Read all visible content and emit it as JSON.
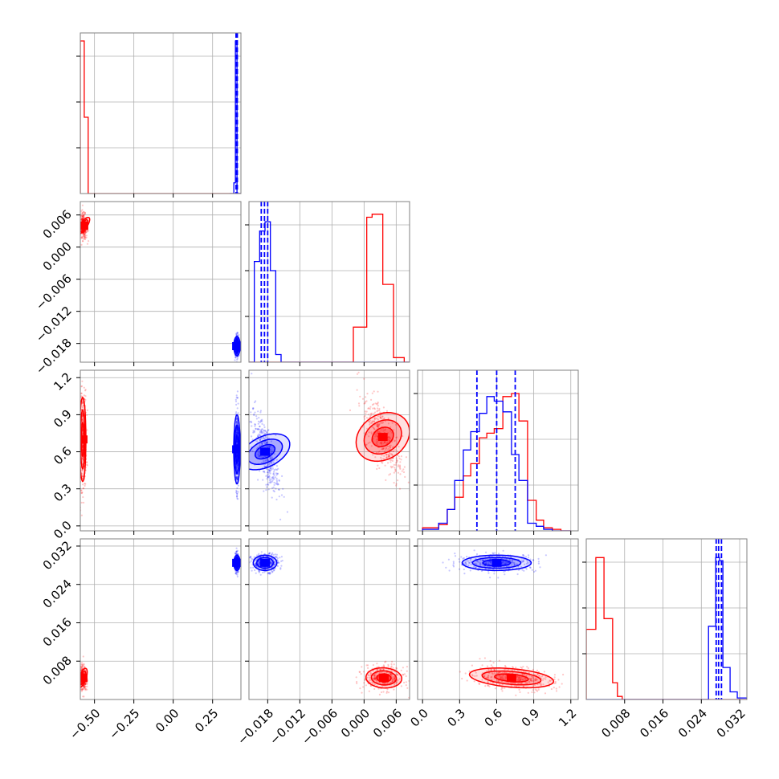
{
  "chart_data": {
    "type": "corner",
    "series": [
      {
        "name": "",
        "color": "#ff0000"
      },
      {
        "name": "",
        "color": "#0000ff"
      }
    ],
    "params": [
      {
        "range": [
          -0.59,
          0.43
        ],
        "ticks": [
          -0.5,
          -0.25,
          0.0,
          0.25
        ],
        "tick_labels": [
          "−0.50",
          "−0.25",
          "0.00",
          "0.25"
        ]
      },
      {
        "range": [
          -0.0215,
          0.0085
        ],
        "ticks": [
          -0.018,
          -0.012,
          -0.006,
          0.0,
          0.006
        ],
        "tick_labels": [
          "−0.018",
          "−0.012",
          "−0.006",
          "0.000",
          "0.006"
        ]
      },
      {
        "range": [
          -0.04,
          1.26
        ],
        "ticks": [
          0.0,
          0.3,
          0.6,
          0.9,
          1.2
        ],
        "tick_labels": [
          "0.0",
          "0.3",
          "0.6",
          "0.9",
          "1.2"
        ]
      },
      {
        "range": [
          0.0,
          0.0335
        ],
        "ticks": [
          0.008,
          0.016,
          0.024,
          0.032
        ],
        "tick_labels": [
          "0.008",
          "0.016",
          "0.024",
          "0.032"
        ]
      }
    ],
    "histograms": [
      {
        "red": {
          "edges": [
            -0.59,
            -0.565,
            -0.54,
            -0.515,
            0.43
          ],
          "counts": [
            1.0,
            0.5,
            0.0,
            0.0
          ]
        },
        "blue": {
          "edges": [
            0.36,
            0.385,
            0.395,
            0.405,
            0.43
          ],
          "counts": [
            0.0,
            0.07,
            1.0,
            0.0
          ]
        },
        "quantiles": [
          0.399,
          0.403,
          0.407
        ]
      },
      {
        "red": {
          "edges": [
            -0.0215,
            -0.002,
            0.0005,
            0.0015,
            0.0035,
            0.0055,
            0.0075,
            0.0085
          ],
          "counts": [
            0.0,
            0.23,
            0.95,
            0.97,
            0.51,
            0.03,
            0.0
          ]
        },
        "blue": {
          "edges": [
            -0.0215,
            -0.0205,
            -0.0195,
            -0.0185,
            -0.0175,
            -0.0165,
            -0.0155,
            0.0085
          ],
          "counts": [
            0.0,
            0.66,
            0.86,
            0.92,
            0.6,
            0.05,
            0.0
          ]
        },
        "quantiles": [
          -0.0192,
          -0.0186,
          -0.018
        ]
      },
      {
        "red": {
          "edges": [
            0.0,
            0.13,
            0.2,
            0.26,
            0.33,
            0.39,
            0.46,
            0.52,
            0.58,
            0.65,
            0.72,
            0.78,
            0.85,
            0.92,
            0.98,
            1.05,
            1.12,
            1.2
          ],
          "counts": [
            0.02,
            0.04,
            0.14,
            0.22,
            0.36,
            0.44,
            0.61,
            0.64,
            0.67,
            0.88,
            0.9,
            0.72,
            0.2,
            0.07,
            0.02,
            0.01,
            0.0
          ]
        },
        "blue": {
          "edges": [
            0.0,
            0.13,
            0.2,
            0.26,
            0.33,
            0.39,
            0.46,
            0.52,
            0.58,
            0.65,
            0.72,
            0.78,
            0.85,
            0.92,
            0.98,
            1.05,
            1.12,
            1.2
          ],
          "counts": [
            0.01,
            0.05,
            0.14,
            0.33,
            0.53,
            0.65,
            0.77,
            0.88,
            0.85,
            0.78,
            0.5,
            0.33,
            0.05,
            0.03,
            0.01,
            0.0,
            0.0
          ]
        },
        "quantiles": [
          0.44,
          0.6,
          0.75
        ]
      },
      {
        "red": {
          "edges": [
            0.0,
            0.002,
            0.0037,
            0.0055,
            0.0065,
            0.0075,
            0.0085,
            0.0335
          ],
          "counts": [
            0.46,
            0.93,
            0.53,
            0.11,
            0.02,
            0.0,
            0.0
          ]
        },
        "blue": {
          "edges": [
            0.0,
            0.0255,
            0.027,
            0.0278,
            0.0285,
            0.03,
            0.0315,
            0.0335
          ],
          "counts": [
            0.0,
            0.48,
            0.93,
            0.91,
            0.21,
            0.05,
            0.01
          ]
        },
        "quantiles": [
          0.0271,
          0.0276,
          0.0282
        ]
      }
    ],
    "pairs": [
      {
        "row": 1,
        "col": 0,
        "red": {
          "mean": [
            -0.57,
            0.004
          ],
          "sd": [
            0.01,
            0.001
          ],
          "corr": -0.2
        },
        "blue": {
          "mean": [
            0.405,
            -0.0185
          ],
          "sd": [
            0.005,
            0.0009
          ],
          "corr": 0.0
        }
      },
      {
        "row": 2,
        "col": 0,
        "red": {
          "mean": [
            -0.575,
            0.7
          ],
          "sd": [
            0.01,
            0.17
          ],
          "corr": 0.0
        },
        "blue": {
          "mean": [
            0.405,
            0.62
          ],
          "sd": [
            0.004,
            0.14
          ],
          "corr": 0.0
        }
      },
      {
        "row": 2,
        "col": 1,
        "red": {
          "mean": [
            0.0035,
            0.72
          ],
          "sd": [
            0.0016,
            0.15
          ],
          "corr": -0.7
        },
        "blue": {
          "mean": [
            -0.0185,
            0.6
          ],
          "sd": [
            0.0011,
            0.14
          ],
          "corr": -0.7
        }
      },
      {
        "row": 3,
        "col": 0,
        "red": {
          "mean": [
            -0.575,
            0.0045
          ],
          "sd": [
            0.01,
            0.0011
          ],
          "corr": -0.1
        },
        "blue": {
          "mean": [
            0.405,
            0.0285
          ],
          "sd": [
            0.005,
            0.0008
          ],
          "corr": 0.0
        }
      },
      {
        "row": 3,
        "col": 1,
        "red": {
          "mean": [
            0.0037,
            0.0045
          ],
          "sd": [
            0.0016,
            0.0011
          ],
          "corr": -0.1
        },
        "blue": {
          "mean": [
            -0.0185,
            0.0285
          ],
          "sd": [
            0.0011,
            0.0008
          ],
          "corr": 0.0
        }
      },
      {
        "row": 3,
        "col": 2,
        "red": {
          "mean": [
            0.72,
            0.0045
          ],
          "sd": [
            0.15,
            0.0011
          ],
          "corr": -0.3
        },
        "blue": {
          "mean": [
            0.6,
            0.0285
          ],
          "sd": [
            0.14,
            0.0008
          ],
          "corr": 0.0
        }
      }
    ],
    "grid": true,
    "legend": "none"
  }
}
